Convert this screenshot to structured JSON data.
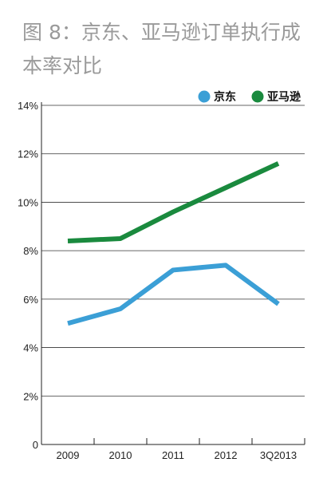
{
  "title_lines": [
    "图 8：京东、亚马逊订单执行成",
    "本率对比"
  ],
  "chart_data": {
    "type": "line",
    "title": "图 8：京东、亚马逊订单执行成本率对比",
    "categories": [
      "2009",
      "2010",
      "2011",
      "2012",
      "3Q2013"
    ],
    "y_ticks": [
      "0",
      "2%",
      "4%",
      "6%",
      "8%",
      "10%",
      "12%",
      "14%"
    ],
    "ylim": [
      0,
      14
    ],
    "grid": true,
    "legend_position": "top-right",
    "series": [
      {
        "name": "京东",
        "color": "#3b9fd6",
        "values": [
          5.0,
          5.6,
          7.2,
          7.4,
          5.8
        ]
      },
      {
        "name": "亚马逊",
        "color": "#1a8a3e",
        "values": [
          8.4,
          8.5,
          9.6,
          10.6,
          11.6
        ]
      }
    ]
  }
}
